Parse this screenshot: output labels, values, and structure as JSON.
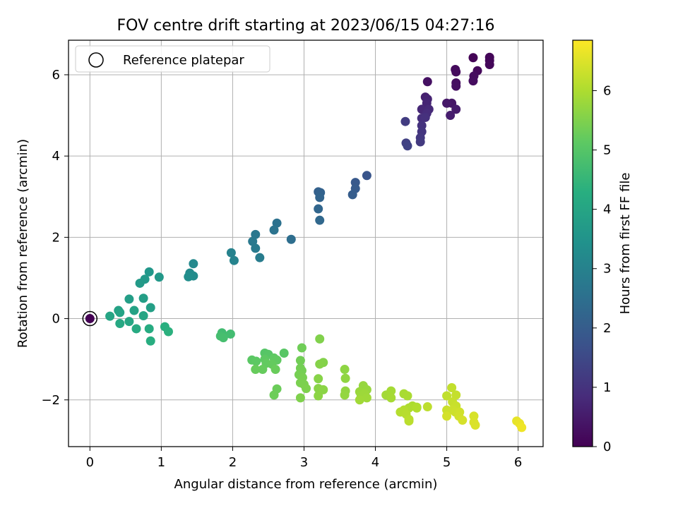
{
  "chart_data": {
    "type": "scatter",
    "title": "FOV centre drift starting at 2023/06/15 04:27:16",
    "xlabel": "Angular distance from reference (arcmin)",
    "ylabel": "Rotation from reference (arcmin)",
    "xlim": [
      -0.3,
      6.35
    ],
    "ylim": [
      -3.15,
      6.85
    ],
    "xticks": [
      0,
      1,
      2,
      3,
      4,
      5,
      6
    ],
    "xtick_labels": [
      "0",
      "1",
      "2",
      "3",
      "4",
      "5",
      "6"
    ],
    "yticks": [
      -2,
      0,
      2,
      4,
      6
    ],
    "ytick_labels": [
      "−2",
      "0",
      "2",
      "4",
      "6"
    ],
    "grid": true,
    "legend": {
      "placement": "top-left",
      "entries": [
        "Reference platepar"
      ]
    },
    "colorbar": {
      "label": "Hours from first FF file",
      "colormap": "viridis",
      "range": [
        0,
        6.85
      ],
      "ticks": [
        0,
        1,
        2,
        3,
        4,
        5,
        6
      ],
      "tick_labels": [
        "0",
        "1",
        "2",
        "3",
        "4",
        "5",
        "6"
      ]
    },
    "reference_point": {
      "x": 0,
      "y": 0
    },
    "series": [
      {
        "points": [
          [
            0.0,
            0.0,
            0.0
          ],
          [
            5.37,
            6.42,
            0.05
          ],
          [
            5.6,
            6.43,
            0.08
          ],
          [
            5.6,
            6.35,
            0.1
          ],
          [
            5.6,
            6.25,
            0.12
          ],
          [
            5.43,
            6.1,
            0.15
          ],
          [
            5.12,
            6.13,
            0.18
          ],
          [
            5.13,
            6.07,
            0.2
          ],
          [
            5.38,
            5.97,
            0.22
          ],
          [
            5.37,
            5.85,
            0.24
          ],
          [
            5.13,
            5.8,
            0.26
          ],
          [
            5.13,
            5.72,
            0.28
          ],
          [
            4.73,
            5.83,
            0.3
          ],
          [
            5.07,
            5.3,
            0.4
          ],
          [
            5.0,
            5.3,
            0.45
          ],
          [
            5.13,
            5.15,
            0.5
          ],
          [
            5.05,
            5.0,
            0.55
          ],
          [
            4.7,
            5.45,
            0.6
          ],
          [
            4.73,
            5.4,
            0.65
          ],
          [
            4.72,
            5.3,
            0.7
          ],
          [
            4.65,
            5.15,
            0.75
          ],
          [
            4.75,
            5.15,
            0.8
          ],
          [
            4.72,
            5.05,
            0.85
          ],
          [
            4.65,
            4.93,
            0.9
          ],
          [
            4.7,
            4.95,
            0.95
          ],
          [
            4.65,
            4.75,
            1.0
          ],
          [
            4.65,
            4.6,
            1.05
          ],
          [
            4.63,
            4.45,
            1.1
          ],
          [
            4.63,
            4.35,
            1.15
          ],
          [
            4.42,
            4.85,
            1.2
          ],
          [
            4.43,
            4.32,
            1.3
          ],
          [
            4.45,
            4.25,
            1.35
          ],
          [
            3.88,
            3.52,
            1.8
          ],
          [
            3.72,
            3.35,
            1.9
          ],
          [
            3.72,
            3.2,
            1.95
          ],
          [
            3.68,
            3.05,
            2.0
          ],
          [
            3.2,
            3.12,
            2.1
          ],
          [
            3.23,
            3.1,
            2.15
          ],
          [
            3.22,
            2.98,
            2.2
          ],
          [
            3.2,
            2.7,
            2.25
          ],
          [
            3.22,
            2.42,
            2.3
          ],
          [
            2.82,
            1.95,
            2.45
          ],
          [
            2.62,
            2.35,
            2.55
          ],
          [
            2.58,
            2.18,
            2.6
          ],
          [
            2.32,
            2.07,
            2.7
          ],
          [
            2.28,
            1.9,
            2.75
          ],
          [
            2.32,
            1.73,
            2.8
          ],
          [
            2.38,
            1.5,
            2.85
          ],
          [
            1.98,
            1.62,
            3.0
          ],
          [
            2.02,
            1.43,
            3.05
          ],
          [
            1.45,
            1.35,
            3.2
          ],
          [
            1.4,
            1.12,
            3.25
          ],
          [
            1.45,
            1.05,
            3.3
          ],
          [
            1.38,
            1.03,
            3.35
          ],
          [
            0.83,
            1.15,
            3.6
          ],
          [
            0.97,
            1.02,
            3.62
          ],
          [
            0.77,
            0.97,
            3.65
          ],
          [
            0.7,
            0.87,
            3.7
          ],
          [
            0.55,
            0.48,
            3.8
          ],
          [
            0.75,
            0.5,
            3.82
          ],
          [
            0.85,
            0.27,
            3.85
          ],
          [
            0.4,
            0.2,
            3.9
          ],
          [
            0.62,
            0.2,
            3.92
          ],
          [
            0.42,
            0.15,
            3.95
          ],
          [
            0.28,
            0.06,
            4.0
          ],
          [
            0.75,
            0.07,
            4.02
          ],
          [
            0.55,
            -0.07,
            4.05
          ],
          [
            0.42,
            -0.12,
            4.1
          ],
          [
            0.65,
            -0.25,
            4.15
          ],
          [
            0.83,
            -0.25,
            4.2
          ],
          [
            0.85,
            -0.55,
            4.25
          ],
          [
            1.05,
            -0.2,
            4.3
          ],
          [
            1.1,
            -0.32,
            4.35
          ],
          [
            1.85,
            -0.35,
            4.7
          ],
          [
            1.97,
            -0.38,
            4.72
          ],
          [
            1.83,
            -0.43,
            4.75
          ],
          [
            1.87,
            -0.47,
            4.78
          ],
          [
            2.45,
            -0.85,
            5.0
          ],
          [
            2.5,
            -0.88,
            5.02
          ],
          [
            2.72,
            -0.85,
            5.05
          ],
          [
            2.27,
            -1.02,
            5.08
          ],
          [
            2.33,
            -1.05,
            5.1
          ],
          [
            2.45,
            -1.0,
            5.12
          ],
          [
            2.58,
            -0.97,
            5.14
          ],
          [
            2.62,
            -1.02,
            5.16
          ],
          [
            2.47,
            -1.1,
            5.18
          ],
          [
            2.55,
            -1.12,
            5.2
          ],
          [
            2.42,
            -1.25,
            5.22
          ],
          [
            2.32,
            -1.25,
            5.24
          ],
          [
            2.6,
            -1.25,
            5.26
          ],
          [
            2.62,
            -1.73,
            5.28
          ],
          [
            2.58,
            -1.88,
            5.3
          ],
          [
            2.97,
            -0.72,
            5.32
          ],
          [
            2.95,
            -1.03,
            5.34
          ],
          [
            2.95,
            -1.22,
            5.36
          ],
          [
            2.97,
            -1.28,
            5.38
          ],
          [
            2.93,
            -1.38,
            5.4
          ],
          [
            2.98,
            -1.45,
            5.42
          ],
          [
            2.95,
            -1.58,
            5.44
          ],
          [
            3.0,
            -1.62,
            5.46
          ],
          [
            3.03,
            -1.72,
            5.48
          ],
          [
            2.95,
            -1.95,
            5.5
          ],
          [
            3.22,
            -0.5,
            5.52
          ],
          [
            3.27,
            -1.08,
            5.54
          ],
          [
            3.22,
            -1.12,
            5.56
          ],
          [
            3.2,
            -1.48,
            5.58
          ],
          [
            3.2,
            -1.72,
            5.6
          ],
          [
            3.27,
            -1.75,
            5.62
          ],
          [
            3.2,
            -1.9,
            5.64
          ],
          [
            3.57,
            -1.25,
            5.66
          ],
          [
            3.58,
            -1.47,
            5.68
          ],
          [
            3.58,
            -1.78,
            5.7
          ],
          [
            3.57,
            -1.88,
            5.72
          ],
          [
            3.83,
            -1.65,
            5.74
          ],
          [
            3.88,
            -1.75,
            5.76
          ],
          [
            3.78,
            -1.8,
            5.78
          ],
          [
            3.8,
            -1.88,
            5.8
          ],
          [
            3.85,
            -1.85,
            5.82
          ],
          [
            3.88,
            -1.95,
            5.84
          ],
          [
            3.78,
            -2.0,
            5.86
          ],
          [
            4.15,
            -1.88,
            5.88
          ],
          [
            4.22,
            -1.78,
            5.9
          ],
          [
            4.22,
            -1.95,
            5.92
          ],
          [
            4.4,
            -1.85,
            5.94
          ],
          [
            4.45,
            -1.9,
            5.96
          ],
          [
            4.52,
            -2.15,
            5.98
          ],
          [
            4.47,
            -2.2,
            6.0
          ],
          [
            4.58,
            -2.18,
            6.02
          ],
          [
            4.58,
            -2.2,
            6.04
          ],
          [
            4.4,
            -2.25,
            6.06
          ],
          [
            4.35,
            -2.3,
            6.08
          ],
          [
            4.43,
            -2.35,
            6.1
          ],
          [
            4.47,
            -2.48,
            6.12
          ],
          [
            4.47,
            -2.52,
            6.14
          ],
          [
            4.73,
            -2.17,
            6.16
          ],
          [
            5.0,
            -1.9,
            6.2
          ],
          [
            5.07,
            -1.7,
            6.22
          ],
          [
            5.13,
            -1.88,
            6.24
          ],
          [
            5.08,
            -2.05,
            6.26
          ],
          [
            5.13,
            -2.15,
            6.28
          ],
          [
            5.0,
            -2.25,
            6.3
          ],
          [
            5.08,
            -2.25,
            6.32
          ],
          [
            5.12,
            -2.3,
            6.34
          ],
          [
            5.18,
            -2.3,
            6.36
          ],
          [
            5.17,
            -2.4,
            6.38
          ],
          [
            5.0,
            -2.4,
            6.4
          ],
          [
            5.22,
            -2.5,
            6.42
          ],
          [
            5.38,
            -2.4,
            6.44
          ],
          [
            5.38,
            -2.55,
            6.46
          ],
          [
            5.4,
            -2.62,
            6.48
          ],
          [
            5.98,
            -2.52,
            6.6
          ],
          [
            6.02,
            -2.58,
            6.65
          ],
          [
            6.05,
            -2.68,
            6.7
          ]
        ]
      }
    ]
  }
}
